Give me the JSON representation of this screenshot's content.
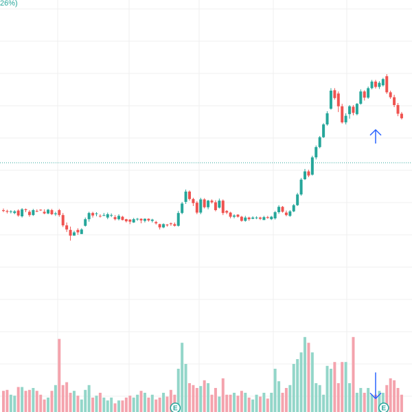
{
  "header": {
    "change_label": "26%)"
  },
  "chart_data": {
    "type": "candlestick",
    "xlabel": "",
    "ylabel": "",
    "ylim": [
      0,
      100
    ],
    "grid": true,
    "colors": {
      "up": "#26a69a",
      "down": "#ef5350",
      "volume_up": "#93d6c9",
      "volume_down": "#f4a3ad",
      "grid": "#efefef",
      "reference_line": "#26a69a",
      "arrow": "#2962ff",
      "event_marker": "#26a69a"
    },
    "reference_level": 60.5,
    "volume_ylim": [
      0,
      100
    ],
    "candles": [
      [
        49,
        48.8,
        49.4,
        48.5,
        22
      ],
      [
        48.8,
        48.6,
        49.1,
        48.2,
        23
      ],
      [
        48.6,
        48.7,
        49,
        48.2,
        18
      ],
      [
        48.3,
        48.7,
        49,
        48,
        17
      ],
      [
        48.9,
        47.7,
        49.2,
        47.4,
        26
      ],
      [
        47.5,
        49.2,
        49.5,
        47.2,
        26
      ],
      [
        49.2,
        49,
        49.4,
        48.5,
        22
      ],
      [
        48.6,
        47.8,
        49,
        47.4,
        23
      ],
      [
        47.8,
        49,
        49.3,
        47.6,
        25
      ],
      [
        48.8,
        48.7,
        49.2,
        48.5,
        22
      ],
      [
        49.1,
        49,
        49.2,
        48.8,
        18
      ],
      [
        48.6,
        48.2,
        49.2,
        48,
        13
      ],
      [
        48.2,
        49.1,
        49.3,
        48,
        15
      ],
      [
        49,
        48,
        49.3,
        47.8,
        22
      ],
      [
        48,
        48.2,
        48.6,
        47.6,
        28
      ],
      [
        49,
        47.8,
        49.3,
        47.4,
        76
      ],
      [
        47.8,
        45.3,
        48.3,
        44.9,
        28
      ],
      [
        45.3,
        44.3,
        46,
        43.7,
        31
      ],
      [
        44.2,
        42.8,
        45,
        41.6,
        20
      ],
      [
        42.8,
        43.6,
        44,
        42.8,
        22
      ],
      [
        44.2,
        43.6,
        44.6,
        43,
        17
      ],
      [
        43.2,
        44.3,
        44.6,
        43.2,
        13
      ],
      [
        45.2,
        46.8,
        47.2,
        45,
        23
      ],
      [
        46.8,
        48.3,
        48.6,
        46.2,
        28
      ],
      [
        48.3,
        47.7,
        48.6,
        47.2,
        15
      ],
      [
        48.1,
        48.2,
        48.5,
        47.5,
        17
      ],
      [
        47.6,
        47.5,
        48,
        47.2,
        20
      ],
      [
        47.6,
        47.8,
        48.3,
        47.6,
        15
      ],
      [
        47.2,
        48,
        48.4,
        46.8,
        12
      ],
      [
        47.8,
        47.8,
        48.2,
        47.3,
        15
      ],
      [
        47.3,
        46.8,
        47.8,
        46.5,
        9
      ],
      [
        46.8,
        47.6,
        48,
        46.5,
        12
      ],
      [
        47.4,
        46.6,
        47.6,
        46.5,
        12
      ],
      [
        46.8,
        46.3,
        46.9,
        46,
        15
      ],
      [
        46.7,
        46.2,
        46.8,
        45.6,
        17
      ],
      [
        46,
        46.8,
        47.1,
        45.9,
        15
      ],
      [
        46.8,
        46.9,
        47.1,
        46.4,
        18
      ],
      [
        46.9,
        46.5,
        47,
        45.8,
        22
      ],
      [
        46.4,
        46.9,
        47,
        46,
        20
      ],
      [
        46.9,
        46.5,
        47,
        46.2,
        15
      ],
      [
        46.4,
        46.7,
        46.9,
        46,
        18
      ],
      [
        46.1,
        45.8,
        46.4,
        45.5,
        13
      ],
      [
        45.6,
        44.8,
        45.7,
        44.3,
        15
      ],
      [
        44.8,
        45.6,
        45.8,
        44.6,
        20
      ],
      [
        45.5,
        45.3,
        45.6,
        45,
        16
      ],
      [
        45.8,
        45.6,
        46,
        45.2,
        23
      ],
      [
        45.6,
        45.2,
        46,
        45,
        18
      ],
      [
        45.2,
        48.3,
        48.8,
        45,
        45
      ],
      [
        48.3,
        50.6,
        51,
        48,
        72
      ],
      [
        51,
        53.5,
        54,
        50.5,
        50
      ],
      [
        53.5,
        51.7,
        53.8,
        51.3,
        30
      ],
      [
        51.7,
        50.7,
        52,
        50,
        28
      ],
      [
        50.8,
        48.4,
        51.2,
        48,
        25
      ],
      [
        48.4,
        51.6,
        52,
        48,
        27
      ],
      [
        51.6,
        49.7,
        51.9,
        49.4,
        33
      ],
      [
        49.7,
        51.3,
        51.5,
        49.2,
        30
      ],
      [
        51.3,
        50.9,
        51.6,
        50.6,
        18
      ],
      [
        50.9,
        49,
        51.4,
        48.7,
        25
      ],
      [
        49.6,
        51.3,
        51.8,
        49.4,
        16
      ],
      [
        51.3,
        48.3,
        51.6,
        47.8,
        35
      ],
      [
        48.8,
        48.4,
        49,
        48,
        18
      ],
      [
        48.4,
        47.4,
        48.6,
        47,
        18
      ],
      [
        47.4,
        47.7,
        48,
        47,
        20
      ],
      [
        47.9,
        47.4,
        48,
        47.2,
        17
      ],
      [
        47.4,
        46.4,
        47.6,
        46.2,
        22
      ],
      [
        46.4,
        47.2,
        47.6,
        46.2,
        20
      ],
      [
        47.2,
        46.8,
        47.4,
        46.4,
        15
      ],
      [
        46.9,
        47.2,
        47.5,
        46.8,
        13
      ],
      [
        47.2,
        47.2,
        47.5,
        46.8,
        18
      ],
      [
        47.2,
        46.9,
        47.4,
        46.6,
        16
      ],
      [
        46.6,
        47.3,
        47.6,
        46.6,
        20
      ],
      [
        47.3,
        47.1,
        47.6,
        46.9,
        14
      ],
      [
        46.8,
        47.4,
        47.6,
        46.6,
        20
      ],
      [
        47,
        48.5,
        48.8,
        46.7,
        45
      ],
      [
        48.5,
        49.8,
        50.2,
        48.1,
        32
      ],
      [
        49.8,
        48.6,
        50,
        48.4,
        20
      ],
      [
        48.4,
        47.8,
        48.9,
        47.5,
        25
      ],
      [
        47.6,
        48.7,
        49,
        47.4,
        28
      ],
      [
        48.7,
        50.2,
        50.5,
        48.5,
        50
      ],
      [
        50.2,
        52.8,
        53.2,
        50,
        55
      ],
      [
        52.8,
        56.4,
        56.8,
        52.5,
        62
      ],
      [
        56.5,
        58.4,
        59,
        56.3,
        78
      ],
      [
        58.4,
        57.4,
        58.8,
        57,
        72
      ],
      [
        57.6,
        61.8,
        62.2,
        57.4,
        62
      ],
      [
        61.8,
        64.3,
        64.7,
        61.3,
        30
      ],
      [
        64.3,
        66.7,
        67,
        64,
        28
      ],
      [
        66.7,
        69.8,
        70.1,
        66.5,
        18
      ],
      [
        69.8,
        72.5,
        73,
        69.5,
        48
      ],
      [
        73.6,
        78,
        78.6,
        73.4,
        45
      ],
      [
        78.1,
        76.2,
        78.6,
        75.8,
        52
      ],
      [
        77.3,
        74.2,
        77.8,
        72.8,
        30
      ],
      [
        74.2,
        70.3,
        74.8,
        70,
        52
      ],
      [
        70.3,
        71.9,
        72.5,
        69.8,
        52
      ],
      [
        72.3,
        74.2,
        74.5,
        71.2,
        30
      ],
      [
        74.1,
        72.6,
        74.5,
        72,
        78
      ],
      [
        72.3,
        74.8,
        75,
        72,
        20
      ],
      [
        74.8,
        77.8,
        78.3,
        74.6,
        25
      ],
      [
        77.8,
        76.3,
        78.1,
        75.6,
        20
      ],
      [
        76.3,
        78.6,
        79,
        76,
        25
      ],
      [
        78.6,
        80.2,
        80.6,
        78.3,
        18
      ],
      [
        80.2,
        78.9,
        80.6,
        78.5,
        18
      ],
      [
        78.9,
        79.9,
        80.3,
        78.4,
        22
      ],
      [
        79.3,
        80.8,
        81.1,
        79,
        20
      ],
      [
        81.5,
        77.6,
        82,
        77.2,
        28
      ],
      [
        77.6,
        76.4,
        78,
        76,
        35
      ],
      [
        76.4,
        74.5,
        77,
        74,
        33
      ],
      [
        74.5,
        72.4,
        75,
        71.8,
        25
      ],
      [
        72.4,
        71.3,
        72.8,
        71,
        18
      ]
    ],
    "arrows": [
      {
        "candle": 100,
        "direction": "up",
        "value": 68.5
      },
      {
        "candle": 100,
        "direction": "down",
        "value": 14
      }
    ],
    "event_markers": [
      {
        "candle": 46,
        "label": "E"
      },
      {
        "candle": 102,
        "label": "E"
      }
    ]
  }
}
